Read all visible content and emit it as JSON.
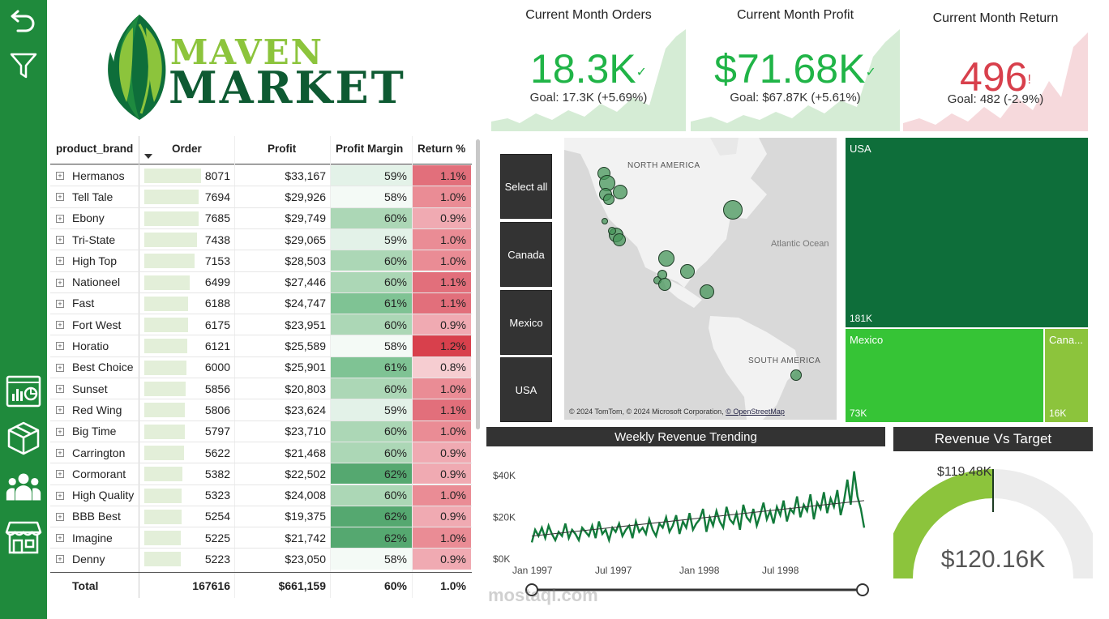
{
  "nav": {
    "items": [
      "back-icon",
      "filter-icon",
      "dashboard-icon",
      "product-icon",
      "customers-icon",
      "store-icon"
    ]
  },
  "logo": {
    "line1": "MAVEN",
    "line2": "MARKET"
  },
  "kpis": [
    {
      "title": "Current Month Orders",
      "value": "18.3K",
      "mark": "✓",
      "goal": "Goal: 17.3K (+5.69%)",
      "status": "good"
    },
    {
      "title": "Current Month Profit",
      "value": "$71.68K",
      "mark": "✓",
      "goal": "Goal: $67.87K (+5.61%)",
      "status": "good"
    },
    {
      "title": "Current Month Return",
      "value": "496",
      "mark": "!",
      "goal": "Goal: 482 (-2.9%)",
      "status": "bad"
    }
  ],
  "colors": {
    "nav": "#1f8a3c",
    "good": "#20b447",
    "bad": "#d8404c",
    "dark_green": "#0e6e3a",
    "mid_green": "#36c436",
    "light_green": "#8cc43c",
    "slicer": "#333333"
  },
  "table": {
    "headers": [
      "product_brand",
      "Order",
      "Profit",
      "Profit Margin",
      "Return %"
    ],
    "rows": [
      {
        "brand": "Hermanos",
        "order": "8071",
        "profit": "$33,167",
        "margin": "59%",
        "ret": "1.1%"
      },
      {
        "brand": "Tell Tale",
        "order": "7694",
        "profit": "$29,926",
        "margin": "58%",
        "ret": "1.0%"
      },
      {
        "brand": "Ebony",
        "order": "7685",
        "profit": "$29,749",
        "margin": "60%",
        "ret": "0.9%"
      },
      {
        "brand": "Tri-State",
        "order": "7438",
        "profit": "$29,065",
        "margin": "59%",
        "ret": "1.0%"
      },
      {
        "brand": "High Top",
        "order": "7153",
        "profit": "$28,503",
        "margin": "60%",
        "ret": "1.0%"
      },
      {
        "brand": "Nationeel",
        "order": "6499",
        "profit": "$27,446",
        "margin": "60%",
        "ret": "1.1%"
      },
      {
        "brand": "Fast",
        "order": "6188",
        "profit": "$24,747",
        "margin": "61%",
        "ret": "1.1%"
      },
      {
        "brand": "Fort West",
        "order": "6175",
        "profit": "$23,951",
        "margin": "60%",
        "ret": "0.9%"
      },
      {
        "brand": "Horatio",
        "order": "6121",
        "profit": "$25,589",
        "margin": "58%",
        "ret": "1.2%"
      },
      {
        "brand": "Best Choice",
        "order": "6000",
        "profit": "$25,901",
        "margin": "61%",
        "ret": "0.8%"
      },
      {
        "brand": "Sunset",
        "order": "5856",
        "profit": "$20,803",
        "margin": "60%",
        "ret": "1.0%"
      },
      {
        "brand": "Red Wing",
        "order": "5806",
        "profit": "$23,624",
        "margin": "59%",
        "ret": "1.1%"
      },
      {
        "brand": "Big Time",
        "order": "5797",
        "profit": "$23,710",
        "margin": "60%",
        "ret": "1.0%"
      },
      {
        "brand": "Carrington",
        "order": "5622",
        "profit": "$21,468",
        "margin": "60%",
        "ret": "0.9%"
      },
      {
        "brand": "Cormorant",
        "order": "5382",
        "profit": "$22,502",
        "margin": "62%",
        "ret": "0.9%"
      },
      {
        "brand": "High Quality",
        "order": "5323",
        "profit": "$24,008",
        "margin": "60%",
        "ret": "1.0%"
      },
      {
        "brand": "BBB Best",
        "order": "5254",
        "profit": "$19,375",
        "margin": "62%",
        "ret": "0.9%"
      },
      {
        "brand": "Imagine",
        "order": "5225",
        "profit": "$21,742",
        "margin": "62%",
        "ret": "1.0%"
      },
      {
        "brand": "Denny",
        "order": "5223",
        "profit": "$23,050",
        "margin": "58%",
        "ret": "0.9%"
      }
    ],
    "total": {
      "label": "Total",
      "order": "167616",
      "profit": "$661,159",
      "margin": "60%",
      "ret": "1.0%"
    }
  },
  "slicer": {
    "items": [
      "Select all",
      "Canada",
      "Mexico",
      "USA"
    ]
  },
  "map": {
    "labels": [
      "NORTH AMERICA",
      "Atlantic Ocean",
      "SOUTH AMERICA"
    ],
    "copyright": "© 2024 TomTom, © 2024 Microsoft Corporation,",
    "osm": "© OpenStreetMap"
  },
  "treemap": {
    "items": [
      {
        "name": "USA",
        "value": "181K"
      },
      {
        "name": "Mexico",
        "value": "73K"
      },
      {
        "name": "Cana...",
        "value": "16K"
      }
    ]
  },
  "line_chart": {
    "title": "Weekly Revenue Trending",
    "y_ticks": [
      "$40K",
      "$20K",
      "$0K"
    ],
    "x_ticks": [
      "Jan 1997",
      "Jul 1997",
      "Jan 1998",
      "Jul 1998"
    ]
  },
  "gauge": {
    "title": "Revenue Vs Target",
    "target": "$119.48K",
    "value": "$120.16K"
  },
  "watermark": "mostaql.com",
  "chart_data": {
    "type": "line",
    "title": "Weekly Revenue Trending",
    "xlabel": "",
    "ylabel": "",
    "ylim": [
      0,
      45000
    ],
    "x_range": [
      "1997-01",
      "1998-12"
    ],
    "series": [
      {
        "values": [
          8000,
          14000,
          11000,
          15000,
          10000,
          16000,
          12000,
          9000,
          13000,
          11000,
          17000,
          10000,
          14000,
          12000,
          9000,
          15000,
          13000,
          11000,
          16000,
          10000,
          18000,
          12000,
          14000,
          9000,
          15000,
          13000,
          17000,
          11000,
          14000,
          16000,
          10000,
          18000,
          13000,
          15000,
          12000,
          19000,
          14000,
          11000,
          17000,
          15000,
          20000,
          13000,
          16000,
          21000,
          12000,
          18000,
          15000,
          22000,
          14000,
          17000,
          19000,
          24000,
          13000,
          20000,
          16000,
          23000,
          18000,
          15000,
          25000,
          19000,
          17000,
          22000,
          14000,
          26000,
          20000,
          18000,
          24000,
          16000,
          21000,
          27000,
          19000,
          23000,
          17000,
          25000,
          21000,
          28000,
          18000,
          24000,
          22000,
          30000,
          20000,
          26000,
          23000,
          31000,
          19000,
          27000,
          24000,
          32000,
          22000,
          29000,
          25000,
          33000,
          21000,
          28000,
          38000,
          26000,
          42000,
          30000,
          24000,
          15000
        ]
      }
    ],
    "trend": {
      "start": 11000,
      "end": 28000
    }
  }
}
